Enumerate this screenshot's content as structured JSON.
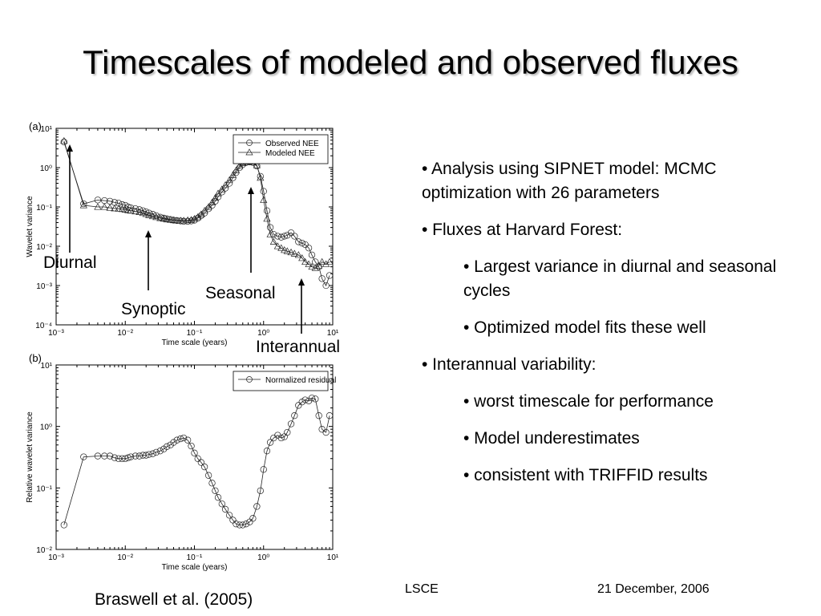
{
  "slide": {
    "title": "Timescales of modeled and observed fluxes",
    "citation": "Braswell et al. (2005)",
    "footer_org": "LSCE",
    "footer_date": "21 December, 2006",
    "shadow_color": "#b8b8b8"
  },
  "annotations": {
    "diurnal": "Diurnal",
    "synoptic": "Synoptic",
    "seasonal": "Seasonal",
    "interannual": "Interannual"
  },
  "bullets": [
    {
      "level": 1,
      "text": "•  Analysis using SIPNET model:  MCMC optimization with 26 parameters"
    },
    {
      "level": 1,
      "text": "•  Fluxes at Harvard Forest:"
    },
    {
      "level": 2,
      "text": "• Largest variance in diurnal and seasonal cycles"
    },
    {
      "level": 2,
      "text": "• Optimized model fits these well"
    },
    {
      "level": 1,
      "text": "•  Interannual variability:"
    },
    {
      "level": 2,
      "text": "•  worst timescale for performance"
    },
    {
      "level": 2,
      "text": "•  Model underestimates"
    },
    {
      "level": 2,
      "text": "•  consistent with TRIFFID results"
    }
  ],
  "chart_data": [
    {
      "type": "line",
      "panel": "(a)",
      "xlabel": "Time scale (years)",
      "ylabel": "Wavelet variance",
      "xscale": "log",
      "yscale": "log",
      "xlim": [
        0.001,
        10
      ],
      "ylim": [
        0.0001,
        10
      ],
      "xticks": [
        "10⁻³",
        "10⁻²",
        "10⁻¹",
        "10⁰",
        "10¹"
      ],
      "yticks": [
        "10⁻⁴",
        "10⁻³",
        "10⁻²",
        "10⁻¹",
        "10⁰",
        "10¹"
      ],
      "legend": "top-right",
      "series": [
        {
          "name": "Observed NEE",
          "marker": "circle",
          "x": [
            0.0013,
            0.0025,
            0.004,
            0.005,
            0.006,
            0.007,
            0.008,
            0.009,
            0.01,
            0.011,
            0.012,
            0.014,
            0.016,
            0.018,
            0.02,
            0.022,
            0.025,
            0.028,
            0.032,
            0.036,
            0.04,
            0.045,
            0.05,
            0.056,
            0.063,
            0.07,
            0.08,
            0.09,
            0.1,
            0.112,
            0.125,
            0.14,
            0.16,
            0.18,
            0.2,
            0.22,
            0.25,
            0.28,
            0.32,
            0.36,
            0.4,
            0.45,
            0.5,
            0.56,
            0.63,
            0.7,
            0.8,
            0.9,
            1.0,
            1.12,
            1.25,
            1.4,
            1.6,
            1.8,
            2.0,
            2.2,
            2.5,
            2.8,
            3.2,
            3.6,
            4.0,
            4.5,
            5.0,
            5.6,
            6.3,
            7.0,
            8.0,
            9.0
          ],
          "y": [
            4.5,
            0.12,
            0.15,
            0.145,
            0.14,
            0.13,
            0.125,
            0.115,
            0.11,
            0.1,
            0.095,
            0.09,
            0.085,
            0.08,
            0.075,
            0.07,
            0.065,
            0.06,
            0.055,
            0.052,
            0.05,
            0.048,
            0.046,
            0.045,
            0.044,
            0.043,
            0.043,
            0.044,
            0.046,
            0.052,
            0.06,
            0.07,
            0.09,
            0.11,
            0.14,
            0.18,
            0.24,
            0.3,
            0.4,
            0.55,
            0.75,
            1.0,
            1.2,
            1.35,
            1.4,
            1.35,
            1.1,
            0.6,
            0.25,
            0.08,
            0.03,
            0.02,
            0.018,
            0.017,
            0.018,
            0.019,
            0.022,
            0.018,
            0.013,
            0.012,
            0.011,
            0.009,
            0.006,
            0.004,
            0.003,
            0.0015,
            0.001,
            0.0018
          ]
        },
        {
          "name": "Modeled NEE",
          "marker": "triangle",
          "x": [
            0.0013,
            0.0025,
            0.004,
            0.005,
            0.006,
            0.007,
            0.008,
            0.009,
            0.01,
            0.011,
            0.012,
            0.014,
            0.016,
            0.018,
            0.02,
            0.022,
            0.025,
            0.028,
            0.032,
            0.036,
            0.04,
            0.045,
            0.05,
            0.056,
            0.063,
            0.07,
            0.08,
            0.09,
            0.1,
            0.112,
            0.125,
            0.14,
            0.16,
            0.18,
            0.2,
            0.22,
            0.25,
            0.28,
            0.32,
            0.36,
            0.4,
            0.45,
            0.5,
            0.56,
            0.63,
            0.7,
            0.8,
            0.9,
            1.0,
            1.12,
            1.25,
            1.4,
            1.6,
            1.8,
            2.0,
            2.2,
            2.5,
            2.8,
            3.2,
            3.6,
            4.0,
            4.5,
            5.0,
            5.6,
            6.3,
            7.0,
            8.0,
            9.0
          ],
          "y": [
            4.8,
            0.11,
            0.1,
            0.1,
            0.095,
            0.092,
            0.09,
            0.088,
            0.085,
            0.082,
            0.08,
            0.077,
            0.074,
            0.07,
            0.066,
            0.062,
            0.058,
            0.055,
            0.052,
            0.05,
            0.048,
            0.047,
            0.046,
            0.045,
            0.045,
            0.045,
            0.046,
            0.047,
            0.05,
            0.055,
            0.065,
            0.08,
            0.1,
            0.13,
            0.17,
            0.22,
            0.28,
            0.36,
            0.48,
            0.65,
            0.85,
            1.1,
            1.3,
            1.4,
            1.45,
            1.4,
            1.15,
            0.55,
            0.15,
            0.05,
            0.02,
            0.013,
            0.01,
            0.009,
            0.008,
            0.0075,
            0.007,
            0.0065,
            0.006,
            0.005,
            0.004,
            0.0035,
            0.003,
            0.0028,
            0.0032,
            0.004,
            0.0035,
            0.004
          ]
        }
      ]
    },
    {
      "type": "line",
      "panel": "(b)",
      "xlabel": "Time scale (years)",
      "ylabel": "Relative wavelet variance",
      "xscale": "log",
      "yscale": "log",
      "xlim": [
        0.001,
        10
      ],
      "ylim": [
        0.01,
        10
      ],
      "xticks": [
        "10⁻³",
        "10⁻²",
        "10⁻¹",
        "10⁰",
        "10¹"
      ],
      "yticks": [
        "10⁻²",
        "10⁻¹",
        "10⁰",
        "10¹"
      ],
      "legend": "top-right",
      "series": [
        {
          "name": "Normalized residual",
          "marker": "circle",
          "x": [
            0.0013,
            0.0025,
            0.004,
            0.005,
            0.006,
            0.007,
            0.008,
            0.009,
            0.01,
            0.011,
            0.012,
            0.014,
            0.016,
            0.018,
            0.02,
            0.022,
            0.025,
            0.028,
            0.032,
            0.036,
            0.04,
            0.045,
            0.05,
            0.056,
            0.063,
            0.07,
            0.08,
            0.09,
            0.1,
            0.112,
            0.125,
            0.14,
            0.16,
            0.18,
            0.2,
            0.22,
            0.25,
            0.28,
            0.32,
            0.36,
            0.4,
            0.45,
            0.5,
            0.56,
            0.63,
            0.7,
            0.8,
            0.9,
            1.0,
            1.12,
            1.25,
            1.4,
            1.6,
            1.8,
            2.0,
            2.2,
            2.5,
            2.8,
            3.2,
            3.6,
            4.0,
            4.5,
            5.0,
            5.6,
            6.3,
            7.0,
            8.0,
            9.0
          ],
          "y": [
            0.025,
            0.32,
            0.33,
            0.33,
            0.33,
            0.31,
            0.3,
            0.3,
            0.3,
            0.31,
            0.32,
            0.33,
            0.33,
            0.34,
            0.34,
            0.35,
            0.36,
            0.38,
            0.4,
            0.43,
            0.47,
            0.5,
            0.55,
            0.6,
            0.63,
            0.65,
            0.6,
            0.48,
            0.37,
            0.3,
            0.26,
            0.22,
            0.16,
            0.12,
            0.09,
            0.07,
            0.055,
            0.045,
            0.036,
            0.03,
            0.026,
            0.025,
            0.025,
            0.026,
            0.028,
            0.032,
            0.05,
            0.09,
            0.2,
            0.4,
            0.55,
            0.65,
            0.72,
            0.65,
            0.68,
            0.8,
            1.1,
            1.5,
            2.2,
            2.5,
            2.7,
            2.6,
            2.9,
            2.8,
            1.5,
            0.9,
            0.8,
            1.5
          ]
        }
      ]
    }
  ]
}
